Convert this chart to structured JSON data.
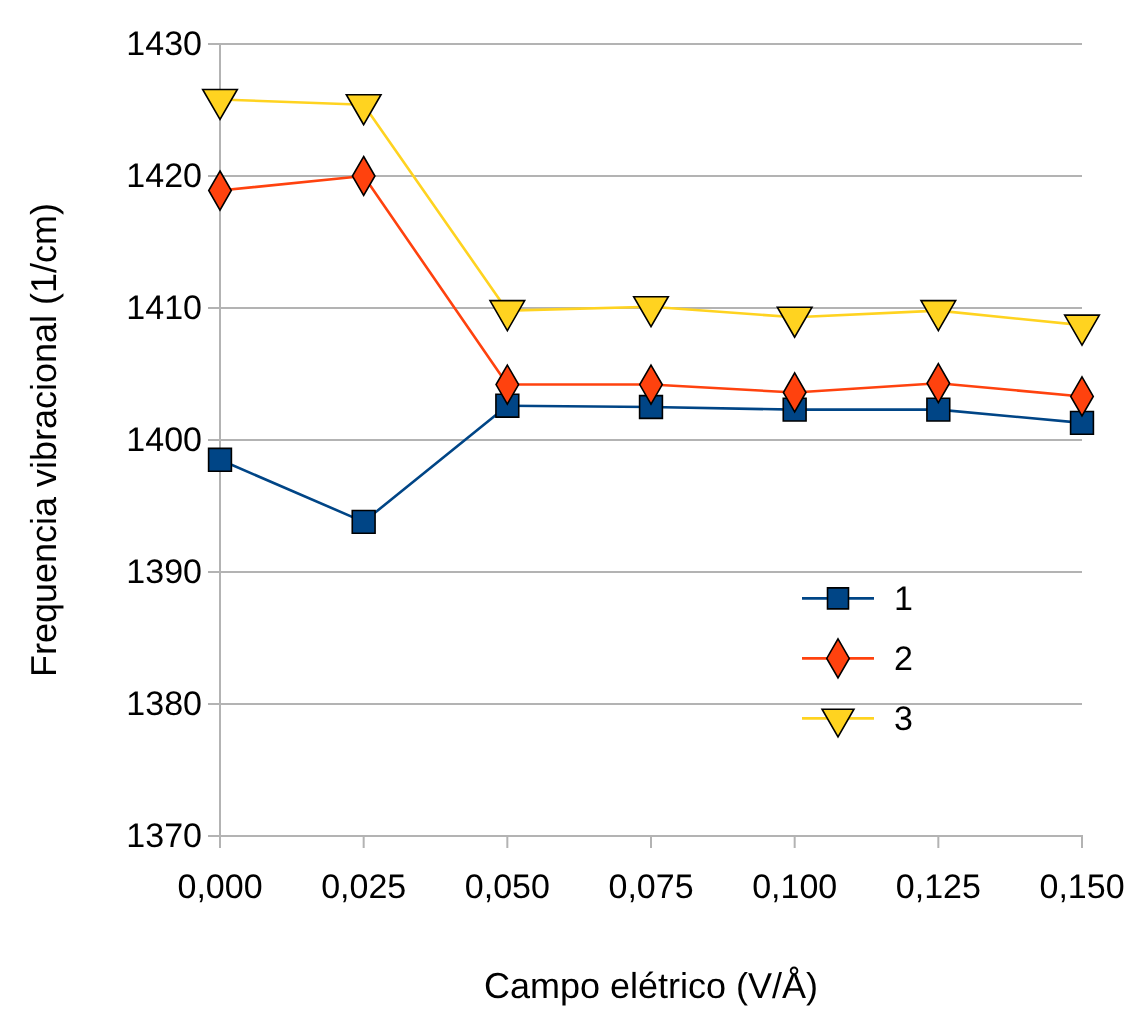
{
  "chart_data": {
    "type": "line",
    "xlabel": "Campo elétrico (V/Å)",
    "ylabel": "Frequencia vibracional (1/cm)",
    "x": [
      0,
      0.025,
      0.05,
      0.075,
      0.1,
      0.125,
      0.15
    ],
    "xlim": [
      0,
      0.15
    ],
    "xticks": [
      {
        "value": 0,
        "label": "0,000"
      },
      {
        "value": 0.025,
        "label": "0,025"
      },
      {
        "value": 0.05,
        "label": "0,050"
      },
      {
        "value": 0.075,
        "label": "0,075"
      },
      {
        "value": 0.1,
        "label": "0,100"
      },
      {
        "value": 0.125,
        "label": "0,125"
      },
      {
        "value": 0.15,
        "label": "0,150"
      }
    ],
    "ylim": [
      1370,
      1430
    ],
    "yticks": [
      1370,
      1380,
      1390,
      1400,
      1410,
      1420,
      1430
    ],
    "grid": "y",
    "legend": "right",
    "series": [
      {
        "name": "1",
        "color": "#004586",
        "marker": "square",
        "values": [
          1398.5,
          1393.8,
          1402.6,
          1402.5,
          1402.3,
          1402.3,
          1401.3
        ]
      },
      {
        "name": "2",
        "color": "#ff420e",
        "marker": "diamond",
        "values": [
          1418.9,
          1420.0,
          1404.2,
          1404.2,
          1403.6,
          1404.3,
          1403.3
        ]
      },
      {
        "name": "3",
        "color": "#ffd320",
        "marker": "triangle",
        "values": [
          1425.8,
          1425.4,
          1409.8,
          1410.1,
          1409.3,
          1409.8,
          1408.7
        ]
      }
    ]
  }
}
